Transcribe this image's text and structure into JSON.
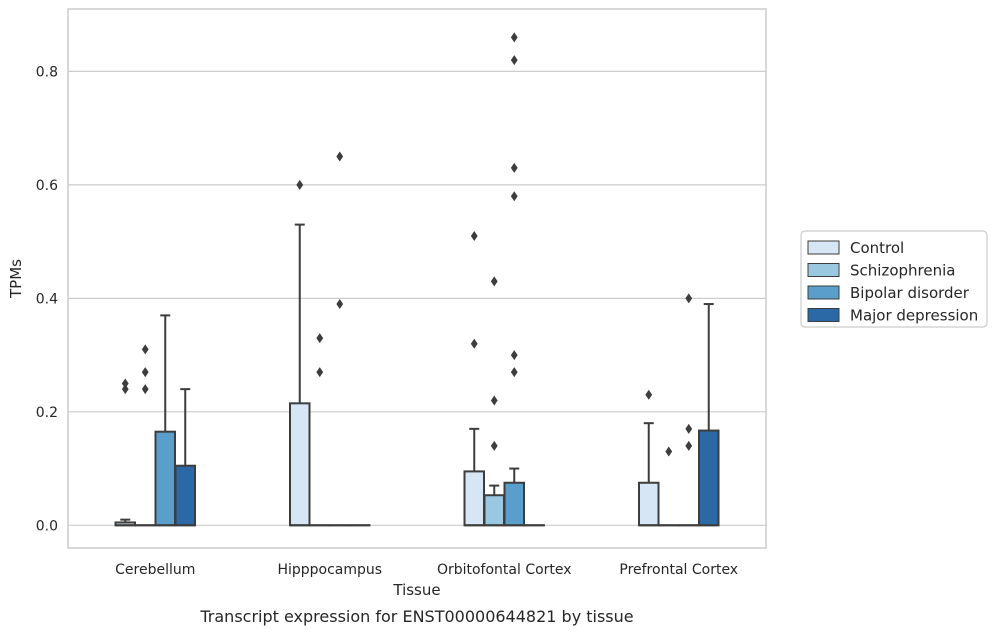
{
  "chart_data": {
    "type": "box",
    "caption": "Transcript expression for ENST00000644821 by tissue",
    "xlabel": "Tissue",
    "ylabel": "TPMs",
    "ylim": [
      -0.04,
      0.91
    ],
    "yticks": [
      0.0,
      0.2,
      0.4,
      0.6,
      0.8
    ],
    "ytick_labels": [
      "0.0",
      "0.2",
      "0.4",
      "0.6",
      "0.8"
    ],
    "grid": "horizontal",
    "legend_position": "right",
    "categories": [
      "Cerebellum",
      "Hipppocampus",
      "Orbitofontal Cortex",
      "Prefrontal Cortex"
    ],
    "series": [
      {
        "name": "Control",
        "color": "#d6e6f4",
        "boxes": [
          {
            "q1": 0.0,
            "median": 0.0,
            "q3": 0.005,
            "whisker_low": 0.0,
            "whisker_high": 0.01,
            "outliers": [
              0.24,
              0.25
            ]
          },
          {
            "q1": 0.0,
            "median": 0.0,
            "q3": 0.215,
            "whisker_low": 0.0,
            "whisker_high": 0.53,
            "outliers": [
              0.6
            ]
          },
          {
            "q1": 0.0,
            "median": 0.0,
            "q3": 0.095,
            "whisker_low": 0.0,
            "whisker_high": 0.17,
            "outliers": [
              0.32,
              0.51
            ]
          },
          {
            "q1": 0.0,
            "median": 0.0,
            "q3": 0.075,
            "whisker_low": 0.0,
            "whisker_high": 0.18,
            "outliers": [
              0.23
            ]
          }
        ]
      },
      {
        "name": "Schizophrenia",
        "color": "#9ac8e0",
        "boxes": [
          {
            "q1": 0.0,
            "median": 0.0,
            "q3": 0.0,
            "whisker_low": 0.0,
            "whisker_high": 0.0,
            "outliers": [
              0.24,
              0.27,
              0.31
            ]
          },
          {
            "q1": 0.0,
            "median": 0.0,
            "q3": 0.0,
            "whisker_low": 0.0,
            "whisker_high": 0.0,
            "outliers": [
              0.27,
              0.33
            ]
          },
          {
            "q1": 0.0,
            "median": 0.0,
            "q3": 0.053,
            "whisker_low": 0.0,
            "whisker_high": 0.07,
            "outliers": [
              0.14,
              0.22,
              0.43
            ]
          },
          {
            "q1": 0.0,
            "median": 0.0,
            "q3": 0.0,
            "whisker_low": 0.0,
            "whisker_high": 0.0,
            "outliers": [
              0.13
            ]
          }
        ]
      },
      {
        "name": "Bipolar disorder",
        "color": "#5a9ecb",
        "boxes": [
          {
            "q1": 0.0,
            "median": 0.0,
            "q3": 0.165,
            "whisker_low": 0.0,
            "whisker_high": 0.37,
            "outliers": []
          },
          {
            "q1": 0.0,
            "median": 0.0,
            "q3": 0.0,
            "whisker_low": 0.0,
            "whisker_high": 0.0,
            "outliers": [
              0.39,
              0.65
            ]
          },
          {
            "q1": 0.0,
            "median": 0.0,
            "q3": 0.075,
            "whisker_low": 0.0,
            "whisker_high": 0.1,
            "outliers": [
              0.27,
              0.3,
              0.58,
              0.63,
              0.82,
              0.86
            ]
          },
          {
            "q1": 0.0,
            "median": 0.0,
            "q3": 0.0,
            "whisker_low": 0.0,
            "whisker_high": 0.0,
            "outliers": [
              0.14,
              0.17,
              0.4
            ]
          }
        ]
      },
      {
        "name": "Major depression",
        "color": "#2a68a6",
        "boxes": [
          {
            "q1": 0.0,
            "median": 0.0,
            "q3": 0.105,
            "whisker_low": 0.0,
            "whisker_high": 0.24,
            "outliers": []
          },
          {
            "q1": 0.0,
            "median": 0.0,
            "q3": 0.0,
            "whisker_low": 0.0,
            "whisker_high": 0.0,
            "outliers": []
          },
          {
            "q1": 0.0,
            "median": 0.0,
            "q3": 0.0,
            "whisker_low": 0.0,
            "whisker_high": 0.0,
            "outliers": []
          },
          {
            "q1": 0.0,
            "median": 0.0,
            "q3": 0.167,
            "whisker_low": 0.0,
            "whisker_high": 0.39,
            "outliers": []
          }
        ]
      }
    ]
  }
}
